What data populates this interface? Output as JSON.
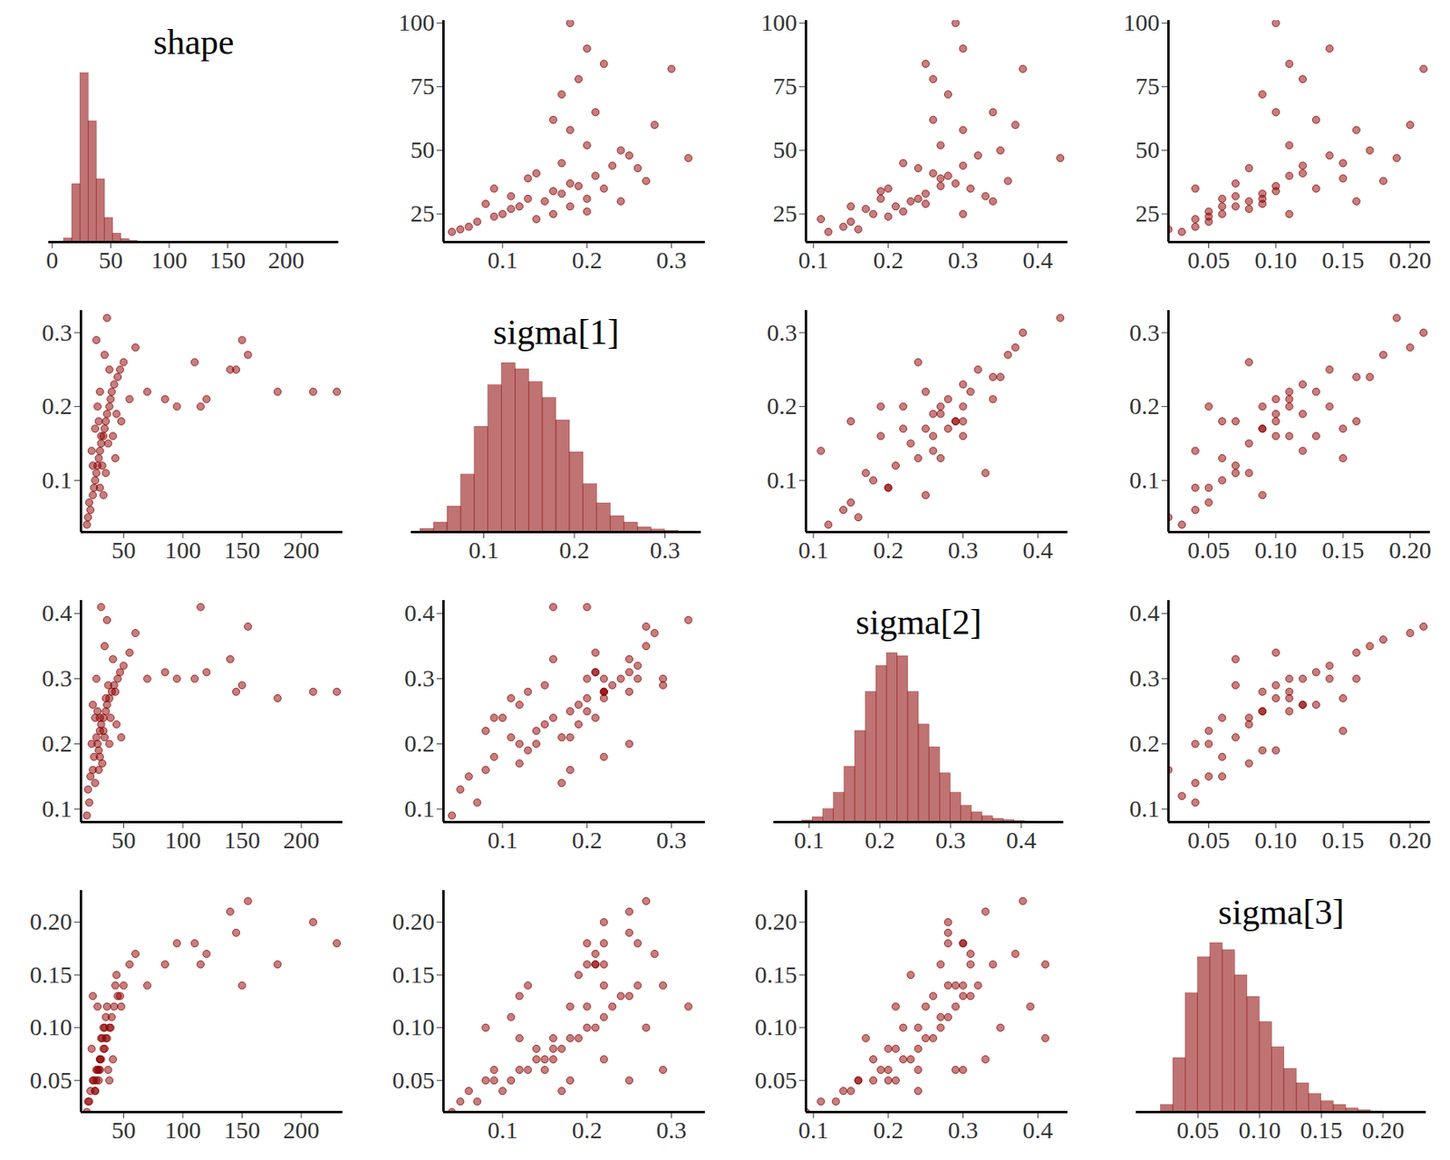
{
  "chart_data": {
    "type": "pairs",
    "color": "#8B0000",
    "variables": [
      {
        "title": "shape",
        "xlim": [
          14,
          235
        ],
        "xticks": [
          50,
          100,
          150,
          200
        ],
        "ylim": [
          14,
          101
        ],
        "yticks": [
          25,
          50,
          75,
          100
        ],
        "hist_xlim": [
          -3,
          245
        ],
        "hist_xticks": [
          0,
          50,
          100,
          150,
          200
        ],
        "bins": [
          10,
          17,
          24,
          31,
          38,
          45,
          52,
          59,
          66,
          73
        ],
        "counts": [
          30,
          480,
          1400,
          1000,
          520,
          200,
          70,
          25,
          10
        ]
      },
      {
        "title": "sigma[1]",
        "xlim": [
          0.03,
          0.34
        ],
        "xticks": [
          0.1,
          0.2,
          0.3
        ],
        "ylim": [
          0.03,
          0.33
        ],
        "yticks": [
          0.1,
          0.2,
          0.3
        ],
        "hist_xlim": [
          0.02,
          0.34
        ],
        "hist_xticks": [
          0.1,
          0.2,
          0.3
        ],
        "bins": [
          0.03,
          0.045,
          0.06,
          0.075,
          0.09,
          0.105,
          0.12,
          0.135,
          0.15,
          0.165,
          0.18,
          0.195,
          0.21,
          0.225,
          0.24,
          0.255,
          0.27,
          0.285,
          0.3,
          0.315,
          0.33
        ],
        "counts": [
          10,
          30,
          80,
          180,
          330,
          460,
          530,
          510,
          470,
          420,
          350,
          250,
          150,
          90,
          50,
          30,
          15,
          8,
          4,
          2
        ]
      },
      {
        "title": "sigma[2]",
        "xlim": [
          0.09,
          0.44
        ],
        "xticks": [
          0.1,
          0.2,
          0.3,
          0.4
        ],
        "ylim": [
          0.08,
          0.42
        ],
        "yticks": [
          0.1,
          0.2,
          0.3,
          0.4
        ],
        "hist_xlim": [
          0.05,
          0.46
        ],
        "hist_xticks": [
          0.1,
          0.2,
          0.3,
          0.4
        ],
        "bins": [
          0.09,
          0.105,
          0.12,
          0.135,
          0.15,
          0.165,
          0.18,
          0.195,
          0.21,
          0.225,
          0.24,
          0.255,
          0.27,
          0.285,
          0.3,
          0.315,
          0.33,
          0.345,
          0.36,
          0.375,
          0.39,
          0.405,
          0.42
        ],
        "counts": [
          5,
          15,
          40,
          90,
          170,
          280,
          400,
          480,
          520,
          510,
          400,
          300,
          230,
          150,
          90,
          50,
          30,
          18,
          10,
          6,
          3,
          2
        ]
      },
      {
        "title": "sigma[3]",
        "xlim": [
          0.02,
          0.215
        ],
        "xticks": [
          0.05,
          {
            "value": 0.1,
            "label": "0.10"
          },
          0.15,
          {
            "value": 0.2,
            "label": "0.20"
          }
        ],
        "ylim": [
          0.02,
          0.23
        ],
        "yticks": [
          0.05,
          {
            "value": 0.1,
            "label": "0.10"
          },
          0.15,
          {
            "value": 0.2,
            "label": "0.20"
          }
        ],
        "hist_xlim": [
          0.0,
          0.235
        ],
        "hist_xticks": [
          0.05,
          {
            "value": 0.1,
            "label": "0.10"
          },
          0.15,
          {
            "value": 0.2,
            "label": "0.20"
          }
        ],
        "bins": [
          0.02,
          0.03,
          0.04,
          0.05,
          0.06,
          0.07,
          0.08,
          0.09,
          0.1,
          0.11,
          0.12,
          0.13,
          0.14,
          0.15,
          0.16,
          0.17,
          0.18,
          0.19,
          0.2
        ],
        "counts": [
          20,
          150,
          330,
          430,
          470,
          450,
          380,
          320,
          250,
          180,
          120,
          80,
          50,
          30,
          20,
          10,
          5,
          2
        ]
      }
    ],
    "draws": {
      "upper": [
        [
          18,
          0.04,
          0.12,
          0.03
        ],
        [
          22,
          0.07,
          0.15,
          0.05
        ],
        [
          25,
          0.1,
          0.18,
          0.06
        ],
        [
          28,
          0.12,
          0.21,
          0.07
        ],
        [
          30,
          0.15,
          0.23,
          0.08
        ],
        [
          33,
          0.17,
          0.25,
          0.09
        ],
        [
          36,
          0.19,
          0.27,
          0.1
        ],
        [
          40,
          0.21,
          0.28,
          0.11
        ],
        [
          44,
          0.23,
          0.3,
          0.12
        ],
        [
          48,
          0.25,
          0.32,
          0.14
        ],
        [
          20,
          0.06,
          0.14,
          0.04
        ],
        [
          24,
          0.09,
          0.2,
          0.05
        ],
        [
          27,
          0.11,
          0.17,
          0.08
        ],
        [
          31,
          0.13,
          0.24,
          0.06
        ],
        [
          34,
          0.16,
          0.19,
          0.1
        ],
        [
          37,
          0.18,
          0.29,
          0.07
        ],
        [
          41,
          0.14,
          0.26,
          0.12
        ],
        [
          26,
          0.2,
          0.22,
          0.05
        ],
        [
          29,
          0.08,
          0.25,
          0.09
        ],
        [
          35,
          0.22,
          0.31,
          0.13
        ],
        [
          45,
          0.17,
          0.22,
          0.15
        ],
        [
          52,
          0.2,
          0.27,
          0.11
        ],
        [
          58,
          0.18,
          0.3,
          0.16
        ],
        [
          62,
          0.16,
          0.26,
          0.13
        ],
        [
          65,
          0.21,
          0.34,
          0.1
        ],
        [
          72,
          0.17,
          0.28,
          0.09
        ],
        [
          78,
          0.19,
          0.26,
          0.12
        ],
        [
          84,
          0.22,
          0.25,
          0.11
        ],
        [
          90,
          0.2,
          0.3,
          0.14
        ],
        [
          100,
          0.18,
          0.29,
          0.1
        ],
        [
          82,
          0.3,
          0.38,
          0.21
        ],
        [
          60,
          0.28,
          0.37,
          0.2
        ],
        [
          47,
          0.32,
          0.43,
          0.19
        ],
        [
          38,
          0.27,
          0.36,
          0.18
        ],
        [
          30,
          0.24,
          0.34,
          0.16
        ],
        [
          23,
          0.14,
          0.11,
          0.04
        ],
        [
          19,
          0.05,
          0.16,
          0.02
        ],
        [
          32,
          0.11,
          0.33,
          0.07
        ],
        [
          28,
          0.18,
          0.15,
          0.06
        ],
        [
          39,
          0.13,
          0.27,
          0.15
        ],
        [
          43,
          0.26,
          0.24,
          0.08
        ],
        [
          25,
          0.16,
          0.3,
          0.11
        ],
        [
          50,
          0.24,
          0.35,
          0.17
        ],
        [
          35,
          0.09,
          0.2,
          0.04
        ],
        [
          31,
          0.2,
          0.19,
          0.09
        ]
      ],
      "lower": [
        [
          22,
          0.06,
          0.15,
          0.04
        ],
        [
          25,
          0.09,
          0.18,
          0.05
        ],
        [
          28,
          0.12,
          0.2,
          0.06
        ],
        [
          30,
          0.14,
          0.22,
          0.07
        ],
        [
          33,
          0.16,
          0.24,
          0.08
        ],
        [
          35,
          0.18,
          0.25,
          0.09
        ],
        [
          38,
          0.2,
          0.27,
          0.1
        ],
        [
          40,
          0.22,
          0.28,
          0.11
        ],
        [
          45,
          0.24,
          0.3,
          0.13
        ],
        [
          50,
          0.26,
          0.32,
          0.14
        ],
        [
          20,
          0.05,
          0.13,
          0.03
        ],
        [
          24,
          0.08,
          0.16,
          0.05
        ],
        [
          27,
          0.11,
          0.21,
          0.05
        ],
        [
          29,
          0.13,
          0.19,
          0.06
        ],
        [
          31,
          0.15,
          0.23,
          0.07
        ],
        [
          34,
          0.17,
          0.21,
          0.08
        ],
        [
          36,
          0.19,
          0.26,
          0.09
        ],
        [
          39,
          0.21,
          0.24,
          0.1
        ],
        [
          42,
          0.23,
          0.29,
          0.12
        ],
        [
          47,
          0.25,
          0.31,
          0.13
        ],
        [
          26,
          0.1,
          0.24,
          0.04
        ],
        [
          32,
          0.12,
          0.17,
          0.09
        ],
        [
          37,
          0.15,
          0.29,
          0.06
        ],
        [
          23,
          0.14,
          0.2,
          0.08
        ],
        [
          29,
          0.18,
          0.16,
          0.05
        ],
        [
          33,
          0.08,
          0.22,
          0.1
        ],
        [
          41,
          0.16,
          0.33,
          0.07
        ],
        [
          28,
          0.2,
          0.25,
          0.12
        ],
        [
          35,
          0.11,
          0.27,
          0.11
        ],
        [
          30,
          0.22,
          0.18,
          0.07
        ],
        [
          44,
          0.19,
          0.23,
          0.15
        ],
        [
          55,
          0.21,
          0.34,
          0.16
        ],
        [
          60,
          0.28,
          0.37,
          0.17
        ],
        [
          21,
          0.07,
          0.11,
          0.03
        ],
        [
          19,
          0.04,
          0.09,
          0.02
        ],
        [
          27,
          0.29,
          0.3,
          0.06
        ],
        [
          36,
          0.32,
          0.39,
          0.12
        ],
        [
          31,
          0.16,
          0.41,
          0.09
        ],
        [
          24,
          0.12,
          0.26,
          0.13
        ],
        [
          38,
          0.25,
          0.2,
          0.05
        ],
        [
          43,
          0.13,
          0.28,
          0.14
        ],
        [
          34,
          0.27,
          0.35,
          0.1
        ],
        [
          26,
          0.17,
          0.14,
          0.04
        ],
        [
          30,
          0.09,
          0.24,
          0.06
        ],
        [
          48,
          0.18,
          0.21,
          0.12
        ],
        [
          70,
          0.22,
          0.3,
          0.14
        ],
        [
          85,
          0.21,
          0.31,
          0.16
        ],
        [
          95,
          0.2,
          0.3,
          0.18
        ],
        [
          110,
          0.26,
          0.3,
          0.18
        ],
        [
          115,
          0.2,
          0.41,
          0.16
        ],
        [
          120,
          0.21,
          0.31,
          0.17
        ],
        [
          140,
          0.25,
          0.33,
          0.21
        ],
        [
          145,
          0.25,
          0.28,
          0.19
        ],
        [
          150,
          0.29,
          0.29,
          0.14
        ],
        [
          155,
          0.27,
          0.38,
          0.22
        ],
        [
          180,
          0.22,
          0.27,
          0.16
        ],
        [
          210,
          0.22,
          0.28,
          0.2
        ],
        [
          230,
          0.22,
          0.28,
          0.18
        ]
      ]
    }
  }
}
